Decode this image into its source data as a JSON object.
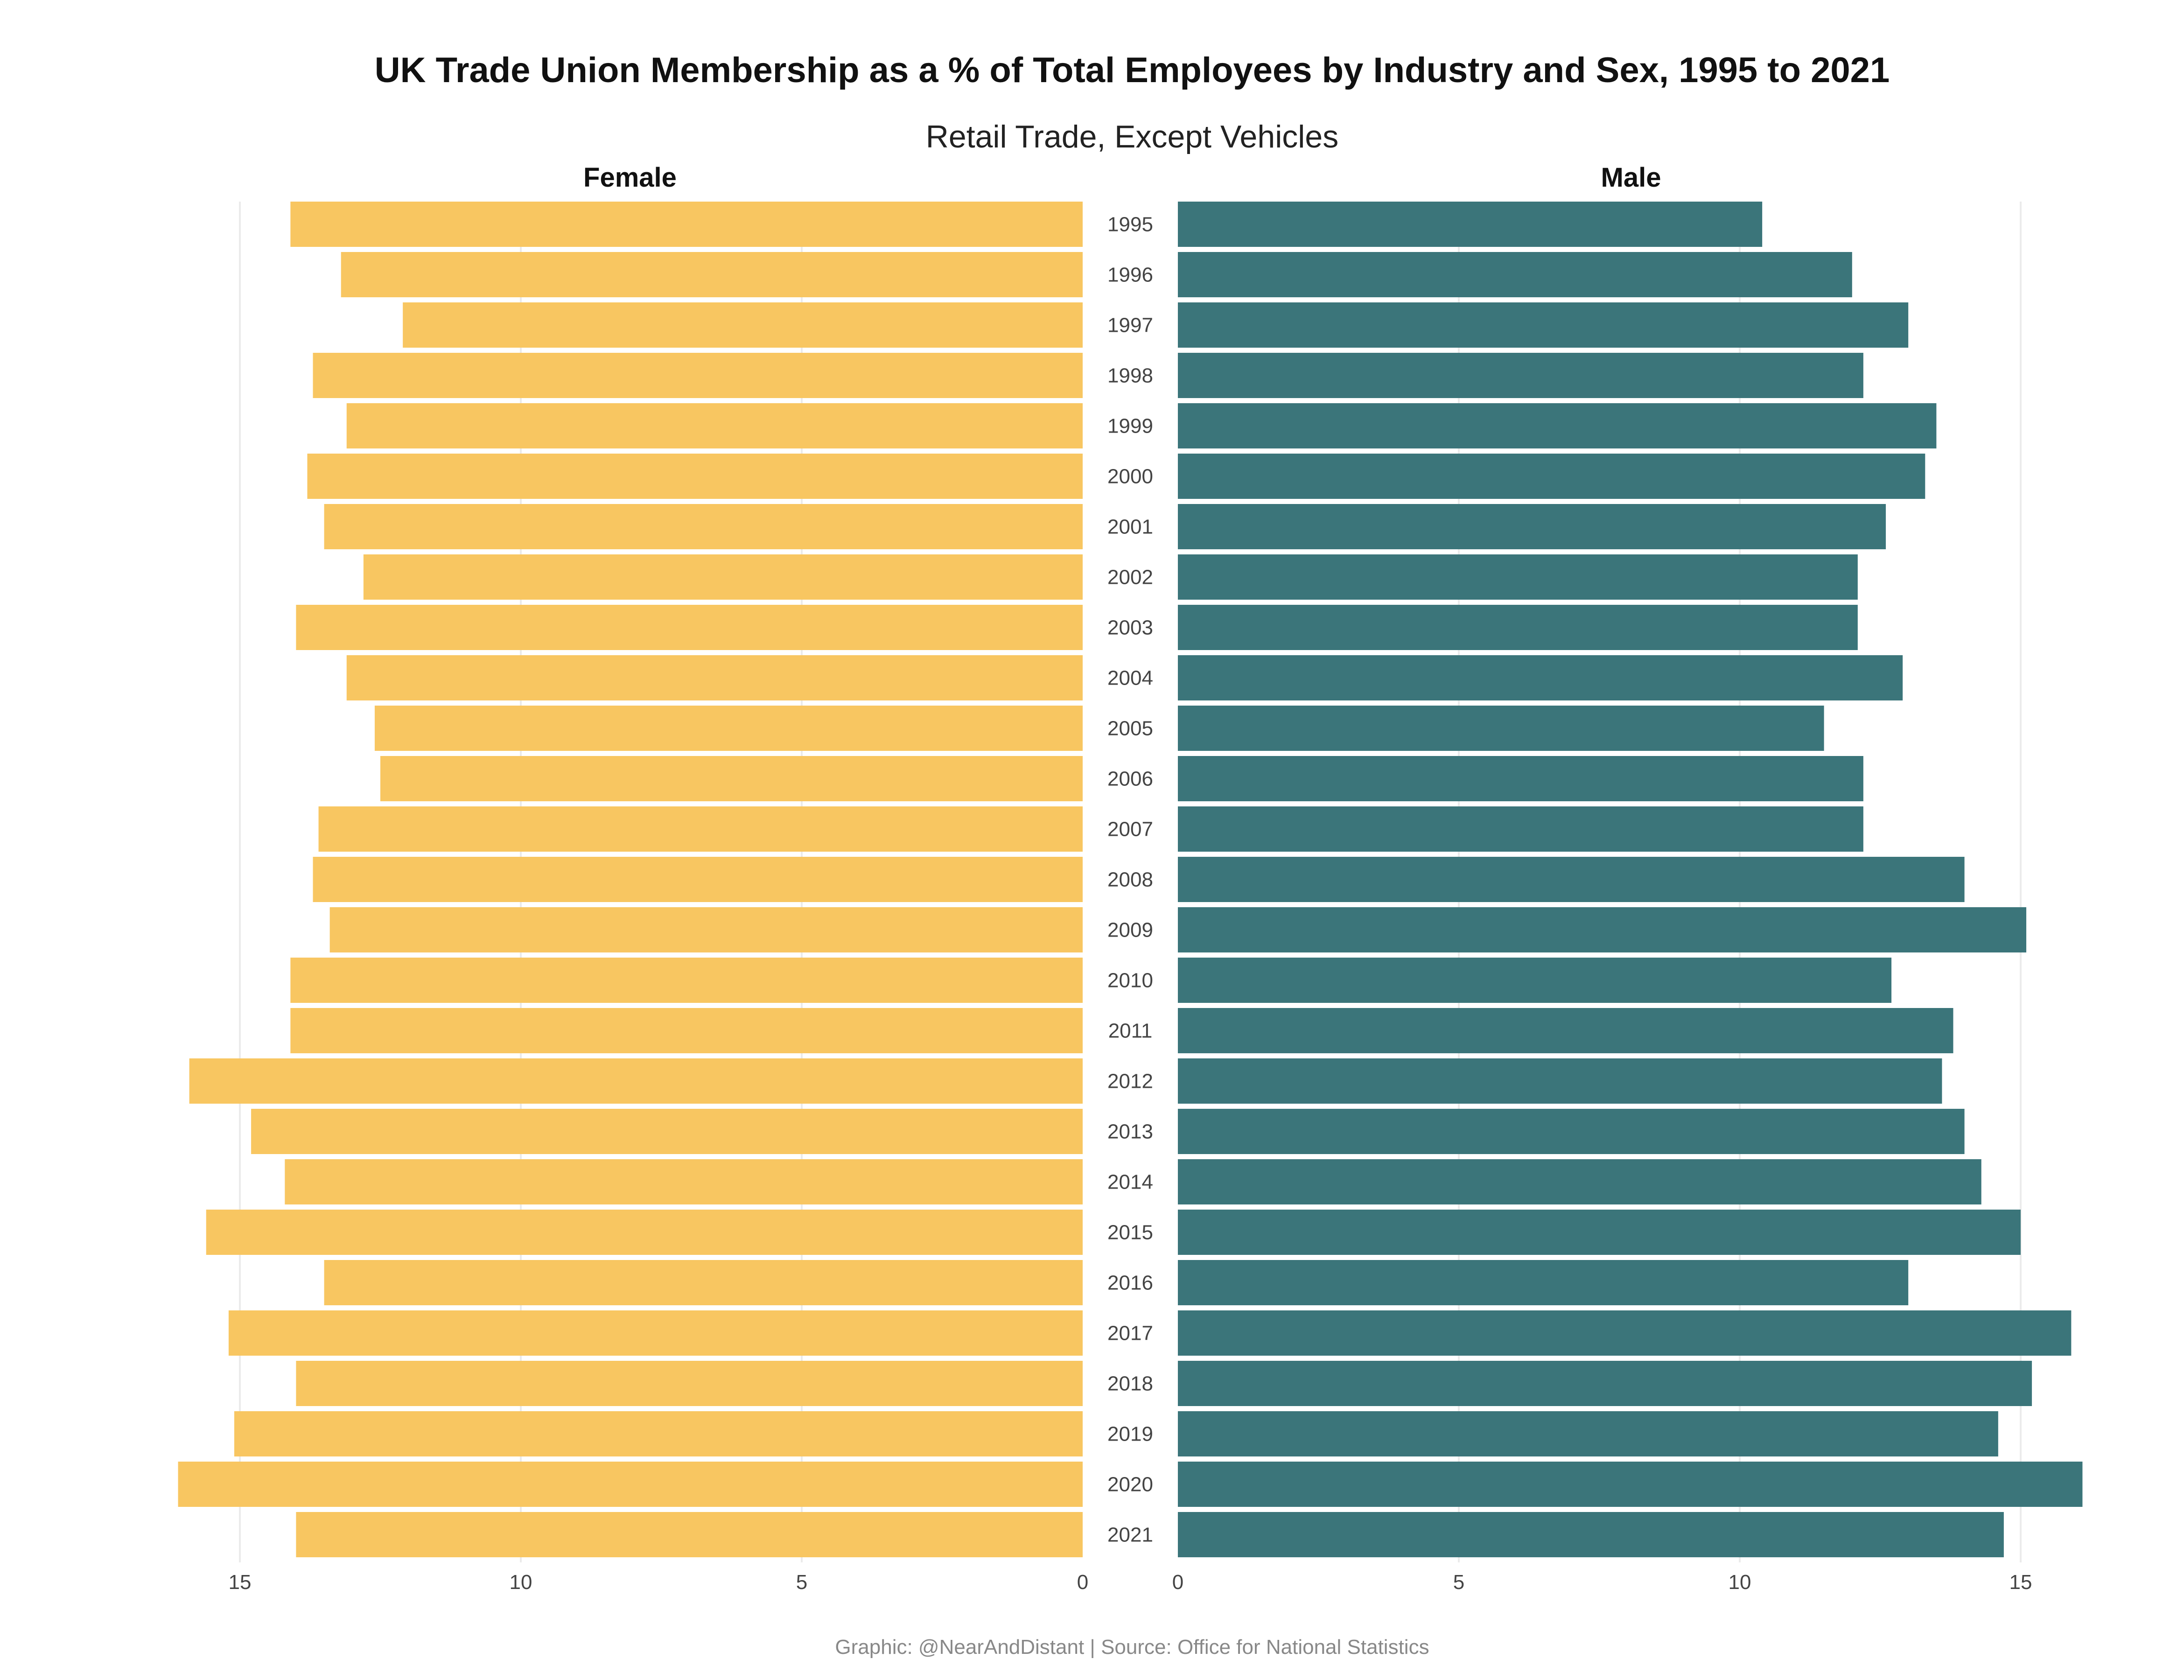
{
  "chart_data": {
    "type": "bar",
    "orientation": "horizontal-back-to-back",
    "title": "UK Trade Union Membership as a % of Total Employees by Industry and Sex, 1995 to 2021",
    "subtitle": "Retail Trade, Except Vehicles",
    "caption": "Graphic: @NearAndDistant | Source: Office for National Statistics",
    "categories": [
      "1995",
      "1996",
      "1997",
      "1998",
      "1999",
      "2000",
      "2001",
      "2002",
      "2003",
      "2004",
      "2005",
      "2006",
      "2007",
      "2008",
      "2009",
      "2010",
      "2011",
      "2012",
      "2013",
      "2014",
      "2015",
      "2016",
      "2017",
      "2018",
      "2019",
      "2020",
      "2021"
    ],
    "series": [
      {
        "name": "Female",
        "color": "#F8C661",
        "values": [
          14.1,
          13.2,
          12.1,
          13.7,
          13.1,
          13.8,
          13.5,
          12.8,
          14.0,
          13.1,
          12.6,
          12.5,
          13.6,
          13.7,
          13.4,
          14.1,
          14.1,
          15.9,
          14.8,
          14.2,
          15.6,
          13.5,
          15.2,
          14.0,
          15.1,
          16.1,
          14.0
        ]
      },
      {
        "name": "Male",
        "color": "#3B757A",
        "values": [
          10.4,
          12.0,
          13.0,
          12.2,
          13.5,
          13.3,
          12.6,
          12.1,
          12.1,
          12.9,
          11.5,
          12.2,
          12.2,
          14.0,
          15.1,
          12.7,
          13.8,
          13.6,
          14.0,
          14.3,
          15.0,
          13.0,
          15.9,
          15.2,
          14.6,
          16.1,
          14.7
        ]
      }
    ],
    "xticks": [
      0,
      5,
      10,
      15
    ],
    "xlim": [
      0,
      16.3
    ],
    "grid": true,
    "legend": "none"
  }
}
